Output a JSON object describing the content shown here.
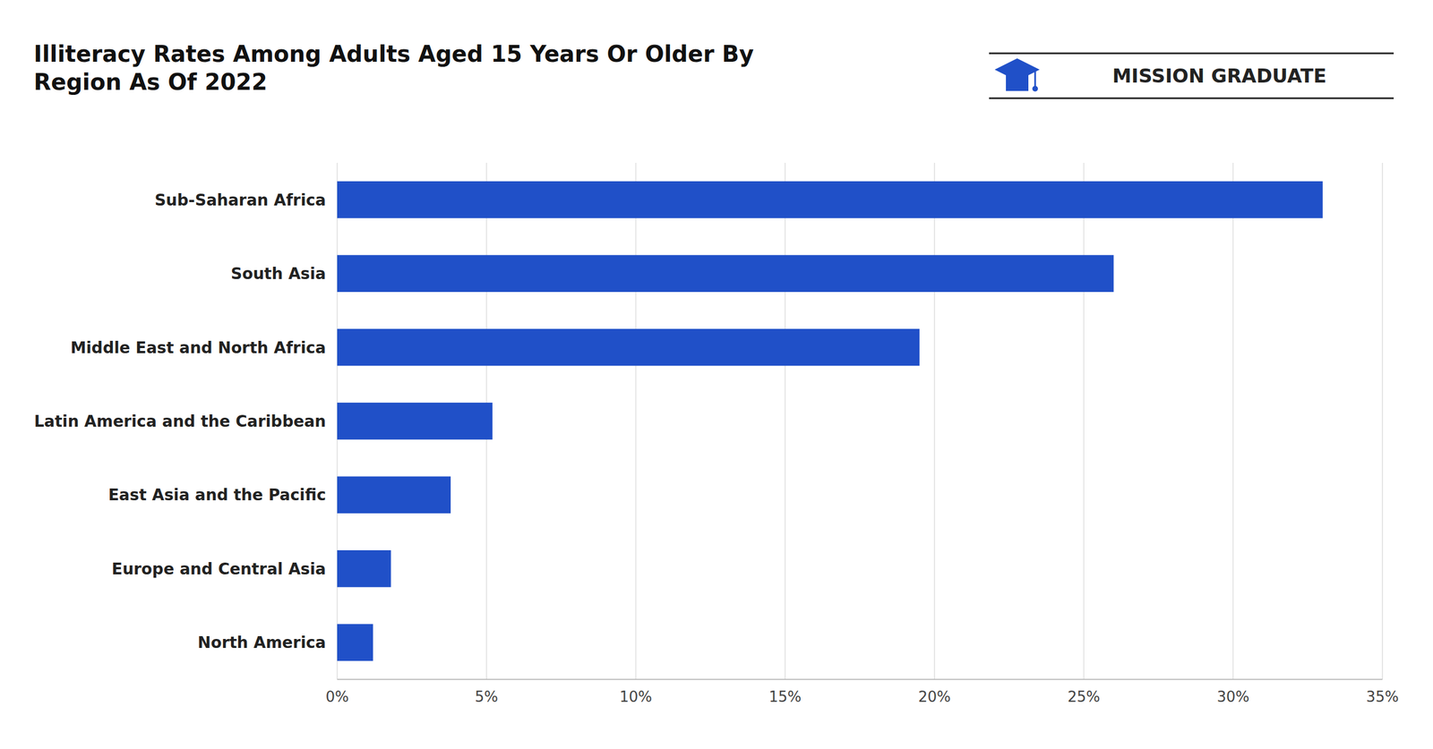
{
  "chart_data": {
    "type": "bar",
    "orientation": "horizontal",
    "title": "Illiteracy Rates Among Adults Aged 15 Years Or Older By\nRegion As Of 2022",
    "categories": [
      "Sub-Saharan Africa",
      "South Asia",
      "Middle East and North Africa",
      "Latin America and the Caribbean",
      "East Asia and the Pacific",
      "Europe and Central Asia",
      "North America"
    ],
    "values": [
      33.0,
      26.0,
      19.5,
      5.2,
      3.8,
      1.8,
      1.2
    ],
    "color": "#2050C8",
    "xlim": [
      0,
      35
    ],
    "xticks": [
      {
        "value": 0,
        "label": "0%"
      },
      {
        "value": 5,
        "label": "5%"
      },
      {
        "value": 10,
        "label": "10%"
      },
      {
        "value": 15,
        "label": "15%"
      },
      {
        "value": 20,
        "label": "20%"
      },
      {
        "value": 25,
        "label": "25%"
      },
      {
        "value": 30,
        "label": "30%"
      },
      {
        "value": 35,
        "label": "35%"
      }
    ],
    "grid": true,
    "annotations": [
      "MISSION GRADUATE"
    ]
  }
}
